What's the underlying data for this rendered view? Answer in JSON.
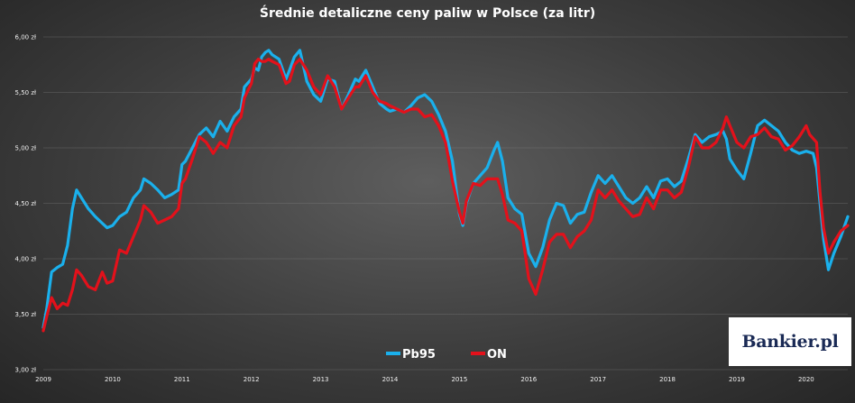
{
  "chart_data": {
    "type": "line",
    "title": "Średnie detaliczne ceny paliw w Polsce (za litr)",
    "xlabel": "",
    "ylabel": "",
    "ylim": [
      3.0,
      6.0
    ],
    "xlim": [
      2009.0,
      2020.6
    ],
    "y_ticks": [
      {
        "value": 6.0,
        "label": "6,00 zł"
      },
      {
        "value": 5.5,
        "label": "5,50 zł"
      },
      {
        "value": 5.0,
        "label": "5,00 zł"
      },
      {
        "value": 4.5,
        "label": "4,50 zł"
      },
      {
        "value": 4.0,
        "label": "4,00 zł"
      },
      {
        "value": 3.5,
        "label": "3,50 zł"
      },
      {
        "value": 3.0,
        "label": "3,00 zł"
      }
    ],
    "x_ticks": [
      {
        "value": 2009,
        "label": "2009"
      },
      {
        "value": 2010,
        "label": "2010"
      },
      {
        "value": 2011,
        "label": "2011"
      },
      {
        "value": 2012,
        "label": "2012"
      },
      {
        "value": 2013,
        "label": "2013"
      },
      {
        "value": 2014,
        "label": "2014"
      },
      {
        "value": 2015,
        "label": "2015"
      },
      {
        "value": 2016,
        "label": "2016"
      },
      {
        "value": 2017,
        "label": "2017"
      },
      {
        "value": 2018,
        "label": "2018"
      },
      {
        "value": 2019,
        "label": "2019"
      },
      {
        "value": 2020,
        "label": "2020"
      }
    ],
    "grid": true,
    "legend_position": "bottom-center",
    "series": [
      {
        "name": "Pb95",
        "color": "#1ab0ec",
        "points": [
          [
            2009.0,
            3.38
          ],
          [
            2009.05,
            3.55
          ],
          [
            2009.12,
            3.88
          ],
          [
            2009.2,
            3.92
          ],
          [
            2009.28,
            3.95
          ],
          [
            2009.35,
            4.12
          ],
          [
            2009.42,
            4.45
          ],
          [
            2009.48,
            4.62
          ],
          [
            2009.55,
            4.55
          ],
          [
            2009.65,
            4.45
          ],
          [
            2009.75,
            4.38
          ],
          [
            2009.85,
            4.32
          ],
          [
            2009.92,
            4.28
          ],
          [
            2010.0,
            4.3
          ],
          [
            2010.1,
            4.38
          ],
          [
            2010.2,
            4.42
          ],
          [
            2010.3,
            4.55
          ],
          [
            2010.4,
            4.62
          ],
          [
            2010.45,
            4.72
          ],
          [
            2010.55,
            4.68
          ],
          [
            2010.65,
            4.62
          ],
          [
            2010.75,
            4.55
          ],
          [
            2010.85,
            4.58
          ],
          [
            2010.95,
            4.62
          ],
          [
            2011.0,
            4.85
          ],
          [
            2011.05,
            4.88
          ],
          [
            2011.15,
            5.0
          ],
          [
            2011.25,
            5.12
          ],
          [
            2011.35,
            5.18
          ],
          [
            2011.45,
            5.1
          ],
          [
            2011.55,
            5.24
          ],
          [
            2011.65,
            5.15
          ],
          [
            2011.75,
            5.28
          ],
          [
            2011.85,
            5.35
          ],
          [
            2011.9,
            5.55
          ],
          [
            2012.0,
            5.62
          ],
          [
            2012.05,
            5.72
          ],
          [
            2012.1,
            5.7
          ],
          [
            2012.15,
            5.82
          ],
          [
            2012.2,
            5.86
          ],
          [
            2012.25,
            5.88
          ],
          [
            2012.3,
            5.84
          ],
          [
            2012.4,
            5.8
          ],
          [
            2012.5,
            5.62
          ],
          [
            2012.55,
            5.7
          ],
          [
            2012.62,
            5.82
          ],
          [
            2012.7,
            5.88
          ],
          [
            2012.8,
            5.6
          ],
          [
            2012.9,
            5.48
          ],
          [
            2013.0,
            5.42
          ],
          [
            2013.1,
            5.62
          ],
          [
            2013.2,
            5.6
          ],
          [
            2013.3,
            5.35
          ],
          [
            2013.4,
            5.48
          ],
          [
            2013.5,
            5.62
          ],
          [
            2013.55,
            5.6
          ],
          [
            2013.65,
            5.7
          ],
          [
            2013.75,
            5.55
          ],
          [
            2013.85,
            5.4
          ],
          [
            2013.95,
            5.35
          ],
          [
            2014.0,
            5.33
          ],
          [
            2014.1,
            5.35
          ],
          [
            2014.2,
            5.32
          ],
          [
            2014.3,
            5.38
          ],
          [
            2014.4,
            5.45
          ],
          [
            2014.5,
            5.48
          ],
          [
            2014.6,
            5.42
          ],
          [
            2014.7,
            5.3
          ],
          [
            2014.8,
            5.15
          ],
          [
            2014.9,
            4.88
          ],
          [
            2015.0,
            4.4
          ],
          [
            2015.05,
            4.3
          ],
          [
            2015.1,
            4.5
          ],
          [
            2015.2,
            4.68
          ],
          [
            2015.3,
            4.75
          ],
          [
            2015.4,
            4.82
          ],
          [
            2015.5,
            4.98
          ],
          [
            2015.55,
            5.05
          ],
          [
            2015.62,
            4.88
          ],
          [
            2015.7,
            4.55
          ],
          [
            2015.8,
            4.45
          ],
          [
            2015.9,
            4.4
          ],
          [
            2016.0,
            4.05
          ],
          [
            2016.1,
            3.93
          ],
          [
            2016.2,
            4.1
          ],
          [
            2016.3,
            4.35
          ],
          [
            2016.4,
            4.5
          ],
          [
            2016.5,
            4.48
          ],
          [
            2016.6,
            4.32
          ],
          [
            2016.7,
            4.4
          ],
          [
            2016.8,
            4.42
          ],
          [
            2016.9,
            4.6
          ],
          [
            2017.0,
            4.75
          ],
          [
            2017.1,
            4.68
          ],
          [
            2017.2,
            4.75
          ],
          [
            2017.3,
            4.65
          ],
          [
            2017.4,
            4.55
          ],
          [
            2017.5,
            4.5
          ],
          [
            2017.6,
            4.55
          ],
          [
            2017.7,
            4.65
          ],
          [
            2017.8,
            4.55
          ],
          [
            2017.9,
            4.7
          ],
          [
            2018.0,
            4.72
          ],
          [
            2018.1,
            4.65
          ],
          [
            2018.2,
            4.7
          ],
          [
            2018.3,
            4.9
          ],
          [
            2018.4,
            5.12
          ],
          [
            2018.5,
            5.05
          ],
          [
            2018.6,
            5.1
          ],
          [
            2018.7,
            5.12
          ],
          [
            2018.8,
            5.15
          ],
          [
            2018.85,
            5.08
          ],
          [
            2018.9,
            4.9
          ],
          [
            2019.0,
            4.8
          ],
          [
            2019.1,
            4.72
          ],
          [
            2019.2,
            4.95
          ],
          [
            2019.3,
            5.2
          ],
          [
            2019.4,
            5.25
          ],
          [
            2019.5,
            5.2
          ],
          [
            2019.6,
            5.15
          ],
          [
            2019.7,
            5.05
          ],
          [
            2019.8,
            4.98
          ],
          [
            2019.9,
            4.95
          ],
          [
            2020.0,
            4.97
          ],
          [
            2020.1,
            4.95
          ],
          [
            2020.15,
            4.82
          ],
          [
            2020.2,
            4.5
          ],
          [
            2020.25,
            4.18
          ],
          [
            2020.32,
            3.9
          ],
          [
            2020.4,
            4.05
          ],
          [
            2020.5,
            4.2
          ],
          [
            2020.6,
            4.38
          ]
        ]
      },
      {
        "name": "ON",
        "color": "#e3111b",
        "points": [
          [
            2009.0,
            3.35
          ],
          [
            2009.05,
            3.48
          ],
          [
            2009.12,
            3.65
          ],
          [
            2009.2,
            3.55
          ],
          [
            2009.28,
            3.6
          ],
          [
            2009.35,
            3.58
          ],
          [
            2009.42,
            3.72
          ],
          [
            2009.48,
            3.9
          ],
          [
            2009.55,
            3.85
          ],
          [
            2009.65,
            3.75
          ],
          [
            2009.75,
            3.72
          ],
          [
            2009.85,
            3.88
          ],
          [
            2009.92,
            3.78
          ],
          [
            2010.0,
            3.8
          ],
          [
            2010.1,
            4.08
          ],
          [
            2010.2,
            4.05
          ],
          [
            2010.3,
            4.2
          ],
          [
            2010.4,
            4.35
          ],
          [
            2010.45,
            4.48
          ],
          [
            2010.55,
            4.42
          ],
          [
            2010.65,
            4.32
          ],
          [
            2010.75,
            4.35
          ],
          [
            2010.85,
            4.38
          ],
          [
            2010.95,
            4.45
          ],
          [
            2011.0,
            4.68
          ],
          [
            2011.05,
            4.72
          ],
          [
            2011.15,
            4.9
          ],
          [
            2011.25,
            5.1
          ],
          [
            2011.35,
            5.05
          ],
          [
            2011.45,
            4.95
          ],
          [
            2011.55,
            5.05
          ],
          [
            2011.65,
            5.0
          ],
          [
            2011.75,
            5.2
          ],
          [
            2011.85,
            5.28
          ],
          [
            2011.9,
            5.45
          ],
          [
            2012.0,
            5.58
          ],
          [
            2012.05,
            5.76
          ],
          [
            2012.1,
            5.8
          ],
          [
            2012.15,
            5.78
          ],
          [
            2012.2,
            5.78
          ],
          [
            2012.25,
            5.8
          ],
          [
            2012.3,
            5.78
          ],
          [
            2012.4,
            5.75
          ],
          [
            2012.5,
            5.58
          ],
          [
            2012.55,
            5.6
          ],
          [
            2012.62,
            5.75
          ],
          [
            2012.7,
            5.8
          ],
          [
            2012.8,
            5.7
          ],
          [
            2012.9,
            5.55
          ],
          [
            2013.0,
            5.48
          ],
          [
            2013.1,
            5.65
          ],
          [
            2013.2,
            5.55
          ],
          [
            2013.3,
            5.35
          ],
          [
            2013.4,
            5.45
          ],
          [
            2013.5,
            5.55
          ],
          [
            2013.55,
            5.55
          ],
          [
            2013.65,
            5.65
          ],
          [
            2013.75,
            5.5
          ],
          [
            2013.85,
            5.42
          ],
          [
            2013.95,
            5.4
          ],
          [
            2014.0,
            5.38
          ],
          [
            2014.1,
            5.35
          ],
          [
            2014.2,
            5.32
          ],
          [
            2014.3,
            5.35
          ],
          [
            2014.4,
            5.35
          ],
          [
            2014.5,
            5.28
          ],
          [
            2014.6,
            5.3
          ],
          [
            2014.7,
            5.2
          ],
          [
            2014.8,
            5.05
          ],
          [
            2014.9,
            4.7
          ],
          [
            2015.0,
            4.42
          ],
          [
            2015.05,
            4.32
          ],
          [
            2015.1,
            4.52
          ],
          [
            2015.2,
            4.68
          ],
          [
            2015.3,
            4.66
          ],
          [
            2015.4,
            4.72
          ],
          [
            2015.5,
            4.72
          ],
          [
            2015.55,
            4.72
          ],
          [
            2015.62,
            4.58
          ],
          [
            2015.7,
            4.35
          ],
          [
            2015.8,
            4.32
          ],
          [
            2015.9,
            4.25
          ],
          [
            2016.0,
            3.82
          ],
          [
            2016.1,
            3.68
          ],
          [
            2016.2,
            3.9
          ],
          [
            2016.3,
            4.15
          ],
          [
            2016.4,
            4.22
          ],
          [
            2016.5,
            4.22
          ],
          [
            2016.6,
            4.1
          ],
          [
            2016.7,
            4.2
          ],
          [
            2016.8,
            4.25
          ],
          [
            2016.9,
            4.35
          ],
          [
            2017.0,
            4.62
          ],
          [
            2017.1,
            4.55
          ],
          [
            2017.2,
            4.62
          ],
          [
            2017.3,
            4.52
          ],
          [
            2017.4,
            4.45
          ],
          [
            2017.5,
            4.38
          ],
          [
            2017.6,
            4.4
          ],
          [
            2017.7,
            4.55
          ],
          [
            2017.8,
            4.45
          ],
          [
            2017.9,
            4.62
          ],
          [
            2018.0,
            4.62
          ],
          [
            2018.1,
            4.55
          ],
          [
            2018.2,
            4.6
          ],
          [
            2018.3,
            4.82
          ],
          [
            2018.4,
            5.1
          ],
          [
            2018.5,
            5.0
          ],
          [
            2018.6,
            5.0
          ],
          [
            2018.7,
            5.05
          ],
          [
            2018.8,
            5.18
          ],
          [
            2018.85,
            5.28
          ],
          [
            2018.9,
            5.2
          ],
          [
            2019.0,
            5.05
          ],
          [
            2019.1,
            5.0
          ],
          [
            2019.2,
            5.1
          ],
          [
            2019.3,
            5.12
          ],
          [
            2019.4,
            5.18
          ],
          [
            2019.5,
            5.1
          ],
          [
            2019.6,
            5.08
          ],
          [
            2019.7,
            4.98
          ],
          [
            2019.8,
            5.02
          ],
          [
            2019.9,
            5.1
          ],
          [
            2020.0,
            5.2
          ],
          [
            2020.05,
            5.12
          ],
          [
            2020.15,
            5.05
          ],
          [
            2020.2,
            4.6
          ],
          [
            2020.25,
            4.28
          ],
          [
            2020.32,
            4.05
          ],
          [
            2020.4,
            4.15
          ],
          [
            2020.5,
            4.25
          ],
          [
            2020.6,
            4.3
          ]
        ]
      }
    ]
  },
  "legend": {
    "items": [
      {
        "label": "Pb95",
        "color": "#1ab0ec"
      },
      {
        "label": "ON",
        "color": "#e3111b"
      }
    ]
  },
  "logo": {
    "text": "Bankier.pl"
  }
}
